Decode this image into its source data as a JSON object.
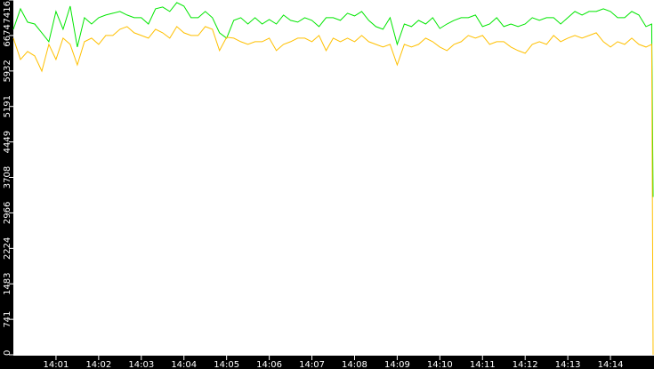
{
  "chart_data": {
    "type": "line",
    "title": "",
    "xlabel": "",
    "ylabel": "",
    "ylim": [
      0,
      7416
    ],
    "xlim": [
      "14:00:00",
      "14:15:00"
    ],
    "grid": false,
    "legend": "none",
    "y_ticks": [
      "0",
      "741",
      "1483",
      "2224",
      "2966",
      "3708",
      "4449",
      "5191",
      "5932",
      "6674",
      "7416"
    ],
    "x_ticks": [
      "14:01",
      "14:02",
      "14:03",
      "14:04",
      "14:05",
      "14:06",
      "14:07",
      "14:08",
      "14:09",
      "14:10",
      "14:11",
      "14:12",
      "14:13",
      "14:14"
    ],
    "x": [
      "14:00:00",
      "14:00:10",
      "14:00:20",
      "14:00:30",
      "14:00:40",
      "14:00:50",
      "14:01:00",
      "14:01:10",
      "14:01:20",
      "14:01:30",
      "14:01:40",
      "14:01:50",
      "14:02:00",
      "14:02:10",
      "14:02:20",
      "14:02:30",
      "14:02:40",
      "14:02:50",
      "14:03:00",
      "14:03:10",
      "14:03:20",
      "14:03:30",
      "14:03:40",
      "14:03:50",
      "14:04:00",
      "14:04:10",
      "14:04:20",
      "14:04:30",
      "14:04:40",
      "14:04:50",
      "14:05:00",
      "14:05:10",
      "14:05:20",
      "14:05:30",
      "14:05:40",
      "14:05:50",
      "14:06:00",
      "14:06:10",
      "14:06:20",
      "14:06:30",
      "14:06:40",
      "14:06:50",
      "14:07:00",
      "14:07:10",
      "14:07:20",
      "14:07:30",
      "14:07:40",
      "14:07:50",
      "14:08:00",
      "14:08:10",
      "14:08:20",
      "14:08:30",
      "14:08:40",
      "14:08:50",
      "14:09:00",
      "14:09:10",
      "14:09:20",
      "14:09:30",
      "14:09:40",
      "14:09:50",
      "14:10:00",
      "14:10:10",
      "14:10:20",
      "14:10:30",
      "14:10:40",
      "14:10:50",
      "14:11:00",
      "14:11:10",
      "14:11:20",
      "14:11:30",
      "14:11:40",
      "14:11:50",
      "14:12:00",
      "14:12:10",
      "14:12:20",
      "14:12:30",
      "14:12:40",
      "14:12:50",
      "14:13:00",
      "14:13:10",
      "14:13:20",
      "14:13:30",
      "14:13:40",
      "14:13:50",
      "14:14:00",
      "14:14:10",
      "14:14:20",
      "14:14:30",
      "14:14:40",
      "14:14:50",
      "14:14:58",
      "14:15:00"
    ],
    "series": [
      {
        "color": "#00e600",
        "values": [
          6804,
          7232,
          6953,
          6915,
          6730,
          6544,
          7176,
          6804,
          7287,
          6432,
          7046,
          6915,
          7046,
          7101,
          7139,
          7176,
          7101,
          7046,
          7046,
          6915,
          7232,
          7269,
          7176,
          7362,
          7287,
          7046,
          7046,
          7176,
          7046,
          6730,
          6618,
          6990,
          7046,
          6915,
          7046,
          6915,
          7008,
          6915,
          7101,
          6990,
          6953,
          7046,
          6990,
          6860,
          7046,
          7046,
          6990,
          7139,
          7083,
          7176,
          6990,
          6860,
          6804,
          7046,
          6488,
          6915,
          6860,
          6990,
          6915,
          7046,
          6822,
          6915,
          6990,
          7046,
          7046,
          7101,
          6860,
          6915,
          7046,
          6860,
          6915,
          6860,
          6915,
          7046,
          6990,
          7046,
          7046,
          6915,
          7046,
          7176,
          7101,
          7176,
          7176,
          7232,
          7176,
          7046,
          7046,
          7176,
          7101,
          6860,
          6915,
          3300
        ]
      },
      {
        "color": "#ffc000",
        "values": [
          6618,
          6172,
          6339,
          6246,
          5930,
          6488,
          6172,
          6618,
          6488,
          6060,
          6544,
          6618,
          6488,
          6674,
          6674,
          6804,
          6860,
          6730,
          6674,
          6618,
          6804,
          6730,
          6618,
          6860,
          6730,
          6674,
          6674,
          6860,
          6804,
          6358,
          6637,
          6618,
          6544,
          6488,
          6544,
          6544,
          6618,
          6358,
          6488,
          6544,
          6618,
          6618,
          6544,
          6674,
          6358,
          6618,
          6544,
          6618,
          6544,
          6674,
          6544,
          6488,
          6432,
          6488,
          6060,
          6488,
          6432,
          6488,
          6618,
          6544,
          6432,
          6358,
          6488,
          6544,
          6674,
          6618,
          6674,
          6488,
          6544,
          6544,
          6432,
          6358,
          6302,
          6488,
          6544,
          6488,
          6674,
          6544,
          6618,
          6674,
          6618,
          6674,
          6730,
          6544,
          6432,
          6544,
          6488,
          6618,
          6488,
          6432,
          6488,
          0
        ]
      }
    ]
  }
}
